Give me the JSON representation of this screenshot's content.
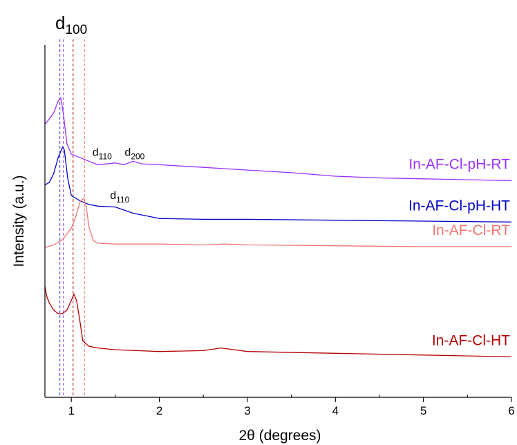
{
  "chart_data": {
    "type": "line",
    "xlabel": "2θ (degrees)",
    "ylabel": "Intensity (a.u.)",
    "xlim": [
      0.7,
      6
    ],
    "x_ticks": [
      1,
      2,
      3,
      4,
      5,
      6
    ],
    "x_tick_labels": [
      "1",
      "2",
      "3",
      "4",
      "5",
      "6"
    ],
    "y_axis_values": "none",
    "grid": false,
    "legend": "labels next to curves (right side)",
    "top_annotation": {
      "main": "d",
      "sub": "100"
    },
    "series": [
      {
        "name": "In-AF-Cl-pH-RT",
        "color": "#9b30ff",
        "points": [
          [
            0.7,
            15
          ],
          [
            0.75,
            15.6
          ],
          [
            0.8,
            16.3
          ],
          [
            0.85,
            17.6
          ],
          [
            0.88,
            18.0
          ],
          [
            0.91,
            16.2
          ],
          [
            0.95,
            12.8
          ],
          [
            1.0,
            11.6
          ],
          [
            1.1,
            11.2
          ],
          [
            1.2,
            10.8
          ],
          [
            1.3,
            10.4
          ],
          [
            1.5,
            10.6
          ],
          [
            1.6,
            10.4
          ],
          [
            1.7,
            10.8
          ],
          [
            1.8,
            10.5
          ],
          [
            2.0,
            10.4
          ],
          [
            2.5,
            10.1
          ],
          [
            3.0,
            9.8
          ],
          [
            3.5,
            9.5
          ],
          [
            4.0,
            9.1
          ],
          [
            4.5,
            8.9
          ],
          [
            5.0,
            8.8
          ],
          [
            5.5,
            8.7
          ],
          [
            6.0,
            8.6
          ]
        ]
      },
      {
        "name": "In-AF-Cl-pH-HT",
        "color": "#0000c8",
        "points": [
          [
            0.7,
            8.1
          ],
          [
            0.75,
            8.4
          ],
          [
            0.8,
            9.4
          ],
          [
            0.85,
            11.2
          ],
          [
            0.9,
            12.4
          ],
          [
            0.92,
            12.1
          ],
          [
            0.96,
            8.8
          ],
          [
            1.0,
            6.9
          ],
          [
            1.1,
            6.3
          ],
          [
            1.2,
            5.9
          ],
          [
            1.3,
            5.7
          ],
          [
            1.5,
            5.6
          ],
          [
            1.7,
            4.9
          ],
          [
            1.9,
            4.5
          ],
          [
            2.0,
            4.3
          ],
          [
            2.5,
            4.2
          ],
          [
            3.0,
            4.2
          ],
          [
            4.0,
            4.1
          ],
          [
            5.0,
            4.0
          ],
          [
            6.0,
            3.9
          ]
        ]
      },
      {
        "name": "In-AF-Cl-RT",
        "color": "#f07470",
        "points": [
          [
            0.7,
            1.0
          ],
          [
            0.8,
            1.3
          ],
          [
            0.9,
            1.9
          ],
          [
            1.0,
            3.2
          ],
          [
            1.05,
            4.5
          ],
          [
            1.1,
            6.2
          ],
          [
            1.14,
            6.6
          ],
          [
            1.17,
            5.6
          ],
          [
            1.2,
            3.3
          ],
          [
            1.25,
            1.8
          ],
          [
            1.3,
            1.5
          ],
          [
            1.5,
            1.4
          ],
          [
            2.0,
            1.4
          ],
          [
            2.5,
            1.3
          ],
          [
            2.75,
            1.4
          ],
          [
            3.0,
            1.3
          ],
          [
            4.0,
            1.2
          ],
          [
            5.0,
            1.1
          ],
          [
            6.0,
            1.1
          ]
        ]
      },
      {
        "name": "In-AF-Cl-HT",
        "color": "#b40000",
        "points": [
          [
            0.7,
            -3.4
          ],
          [
            0.72,
            -4.5
          ],
          [
            0.75,
            -5.3
          ],
          [
            0.8,
            -6.1
          ],
          [
            0.85,
            -6.5
          ],
          [
            0.9,
            -6.5
          ],
          [
            0.95,
            -6.1
          ],
          [
            1.0,
            -5.0
          ],
          [
            1.03,
            -4.3
          ],
          [
            1.06,
            -5.0
          ],
          [
            1.1,
            -7.5
          ],
          [
            1.13,
            -9.6
          ],
          [
            1.2,
            -10.2
          ],
          [
            1.3,
            -10.4
          ],
          [
            1.5,
            -10.6
          ],
          [
            2.0,
            -10.8
          ],
          [
            2.5,
            -10.7
          ],
          [
            2.7,
            -10.4
          ],
          [
            3.0,
            -10.8
          ],
          [
            4.0,
            -11.0
          ],
          [
            5.0,
            -11.2
          ],
          [
            6.0,
            -11.4
          ]
        ]
      }
    ],
    "reference_lines": [
      {
        "x": 0.87,
        "color": "#2a2ad6"
      },
      {
        "x": 0.91,
        "color": "#a040e8"
      },
      {
        "x": 1.02,
        "color": "#b40000"
      },
      {
        "x": 1.15,
        "color": "#f07470"
      }
    ],
    "peak_annotations": [
      {
        "main": "d",
        "sub": "110",
        "x": 1.35,
        "y": 11.4
      },
      {
        "main": "d",
        "sub": "200",
        "x": 1.72,
        "y": 11.4
      },
      {
        "main": "d",
        "sub": "110",
        "x": 1.55,
        "y": 6.5
      }
    ]
  }
}
